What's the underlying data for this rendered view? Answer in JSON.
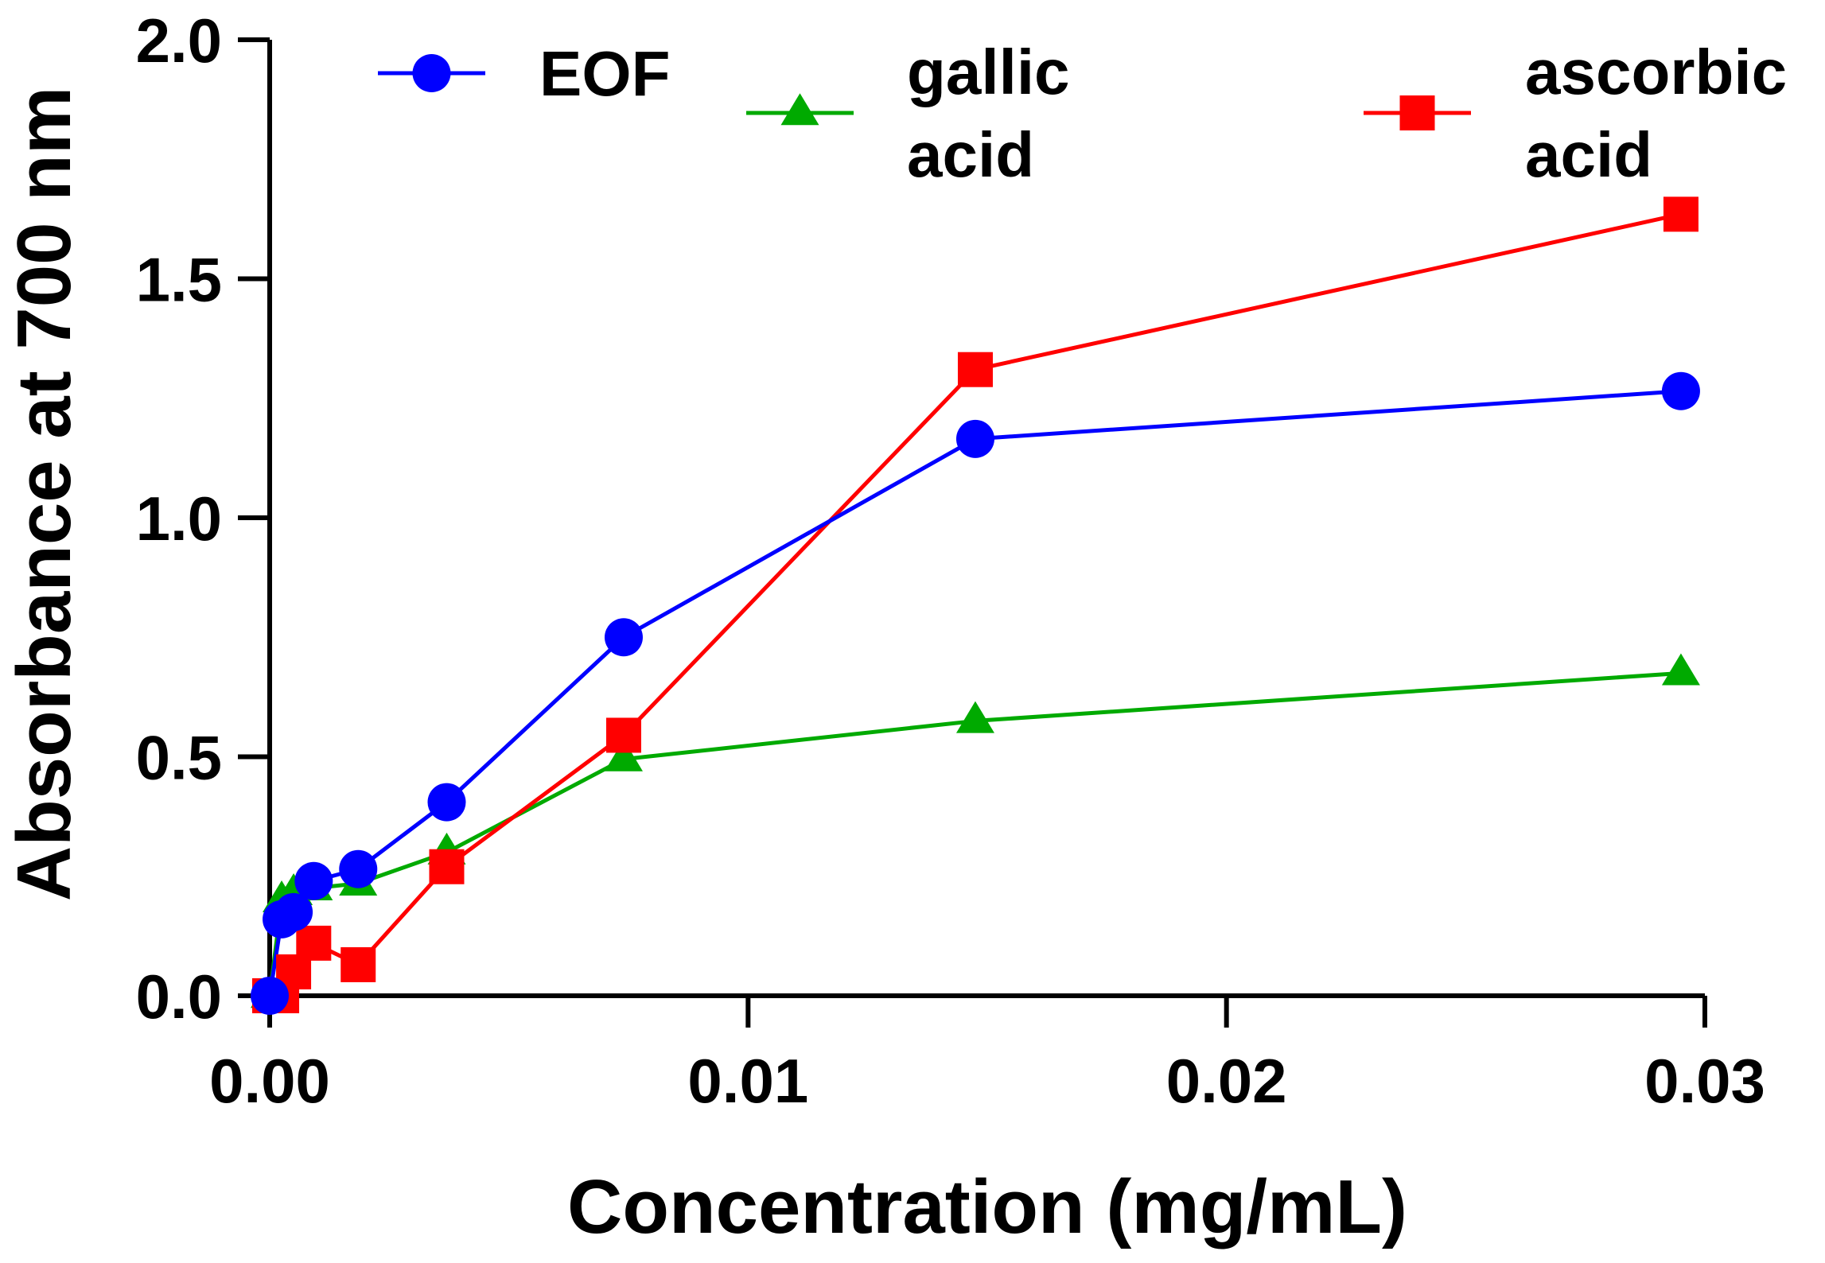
{
  "chart_data": {
    "type": "line",
    "title": "",
    "xlabel": "Concentration (mg/mL)",
    "ylabel": "Absorbance at 700 nm",
    "xlim": [
      0,
      0.03
    ],
    "ylim": [
      0,
      2.0
    ],
    "x_ticks": [
      0.0,
      0.01,
      0.02,
      0.03
    ],
    "x_tick_labels": [
      "0.00",
      "0.01",
      "0.02",
      "0.03"
    ],
    "y_ticks": [
      0.0,
      0.5,
      1.0,
      1.5,
      2.0
    ],
    "y_tick_labels": [
      "0.0",
      "0.5",
      "1.0",
      "1.5",
      "2.0"
    ],
    "grid": false,
    "legend_position": "top",
    "series": [
      {
        "name": "EOF",
        "label_lines": [
          "EOF"
        ],
        "color": "#0000ff",
        "marker": "circle",
        "x": [
          0.0,
          0.00025,
          0.0005,
          0.00092,
          0.00185,
          0.0037,
          0.0074,
          0.01475,
          0.0295
        ],
        "y": [
          0.0,
          0.16,
          0.175,
          0.24,
          0.265,
          0.405,
          0.75,
          1.165,
          1.265
        ]
      },
      {
        "name": "gallic acid",
        "label_lines": [
          "gallic",
          "acid"
        ],
        "color": "#00aa00",
        "marker": "triangle",
        "x": [
          0.0,
          0.00025,
          0.0005,
          0.00092,
          0.00185,
          0.0037,
          0.0074,
          0.01475,
          0.0295
        ],
        "y": [
          0.0,
          0.2,
          0.215,
          0.225,
          0.235,
          0.3,
          0.495,
          0.575,
          0.675
        ]
      },
      {
        "name": "ascorbic acid",
        "label_lines": [
          "ascorbic",
          "acid"
        ],
        "color": "#ff0000",
        "marker": "square",
        "x": [
          0.0,
          0.00025,
          0.0005,
          0.00092,
          0.00185,
          0.0037,
          0.0074,
          0.01475,
          0.0295
        ],
        "y": [
          0.0,
          0.0,
          0.05,
          0.11,
          0.065,
          0.27,
          0.545,
          1.31,
          1.635
        ]
      }
    ]
  }
}
